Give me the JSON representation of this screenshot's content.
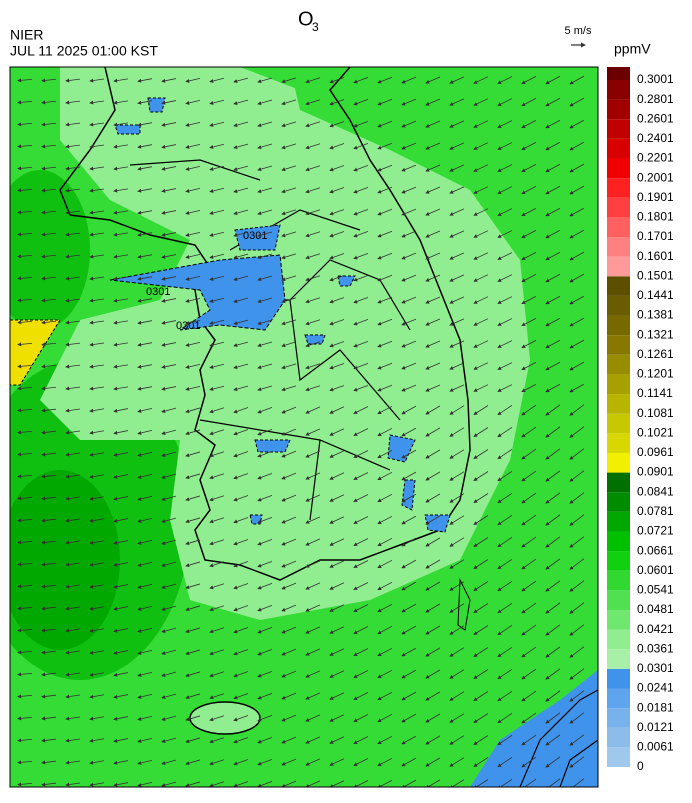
{
  "header": {
    "title": "O",
    "title_sub": "3",
    "agency": "NIER",
    "datetime": "JUL 11 2025 01:00 KST"
  },
  "wind_reference": {
    "label": "5 m/s"
  },
  "map": {
    "contour_labels": [
      "0301",
      "0301",
      "0301"
    ]
  },
  "colorbar": {
    "unit": "ppmV",
    "levels": [
      "0",
      "0.0061",
      "0.0121",
      "0.0181",
      "0.0241",
      "0.0301",
      "0.0361",
      "0.0421",
      "0.0481",
      "0.0541",
      "0.0601",
      "0.0661",
      "0.0721",
      "0.0781",
      "0.0841",
      "0.0901",
      "0.0961",
      "0.1021",
      "0.1081",
      "0.1141",
      "0.1201",
      "0.1261",
      "0.1321",
      "0.1381",
      "0.1441",
      "0.1501",
      "0.1601",
      "0.1701",
      "0.1801",
      "0.1901",
      "0.2001",
      "0.2201",
      "0.2401",
      "0.2601",
      "0.2801",
      "0.3001"
    ],
    "colors": [
      "#a0c8ec",
      "#8cbdea",
      "#78b2ec",
      "#5ea4ee",
      "#3f93ea",
      "#a8f0a8",
      "#90ee90",
      "#70e870",
      "#50e050",
      "#30d830",
      "#10d010",
      "#00c000",
      "#00a800",
      "#008c00",
      "#007000",
      "#f0f000",
      "#d8d800",
      "#c8c800",
      "#b8b400",
      "#a8a000",
      "#988c00",
      "#887800",
      "#786800",
      "#6a5c00",
      "#5c5000",
      "#ff9a9a",
      "#ff8080",
      "#ff6060",
      "#ff4040",
      "#ff2020",
      "#f00000",
      "#d80000",
      "#c00000",
      "#a00000",
      "#880000",
      "#6c0000"
    ]
  }
}
